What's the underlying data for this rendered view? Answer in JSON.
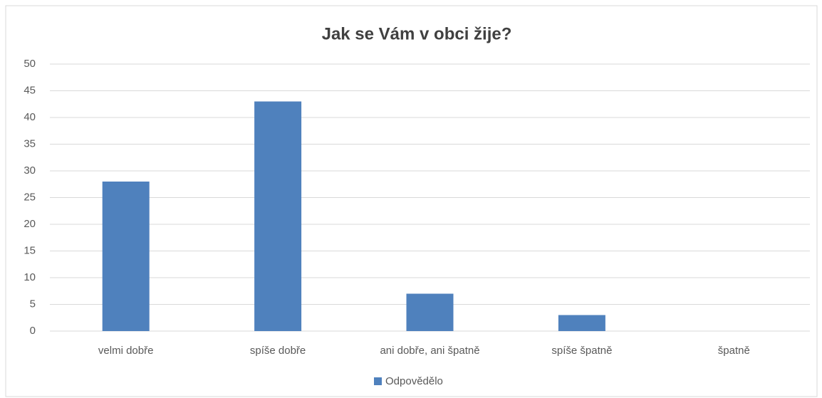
{
  "chart_data": {
    "type": "bar",
    "title": "Jak se Vám v obci žije?",
    "categories": [
      "velmi dobře",
      "spíše dobře",
      "ani dobře, ani špatně",
      "spíše špatně",
      "špatně"
    ],
    "series": [
      {
        "name": "Odpovědělo",
        "color": "#4f81bd",
        "values": [
          28,
          43,
          7,
          3,
          0
        ]
      }
    ],
    "ylim": [
      0,
      50
    ],
    "yticks": [
      0,
      5,
      10,
      15,
      20,
      25,
      30,
      35,
      40,
      45,
      50
    ],
    "grid": true,
    "legend": "bottom"
  }
}
